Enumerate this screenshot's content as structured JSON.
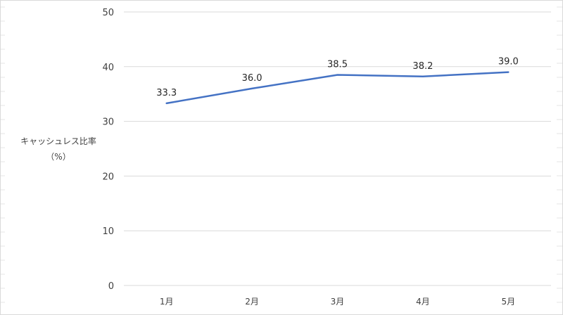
{
  "chart_data": {
    "type": "line",
    "categories": [
      "1月",
      "2月",
      "3月",
      "4月",
      "5月"
    ],
    "series": [
      {
        "values": [
          33.3,
          36.0,
          38.5,
          38.2,
          39.0
        ]
      }
    ],
    "data_labels": [
      "33.3",
      "36.0",
      "38.5",
      "38.2",
      "39.0"
    ],
    "ylabel": {
      "line1": "キャッシュレス比率",
      "line2": "（%）"
    },
    "xlabel": "",
    "ylim": [
      0,
      50
    ],
    "yticks": [
      0,
      10,
      20,
      30,
      40,
      50
    ],
    "grid": true,
    "legend": "none",
    "colors": {
      "line": "#4472C4",
      "grid": "#d9d9d9",
      "text": "#404040"
    }
  }
}
